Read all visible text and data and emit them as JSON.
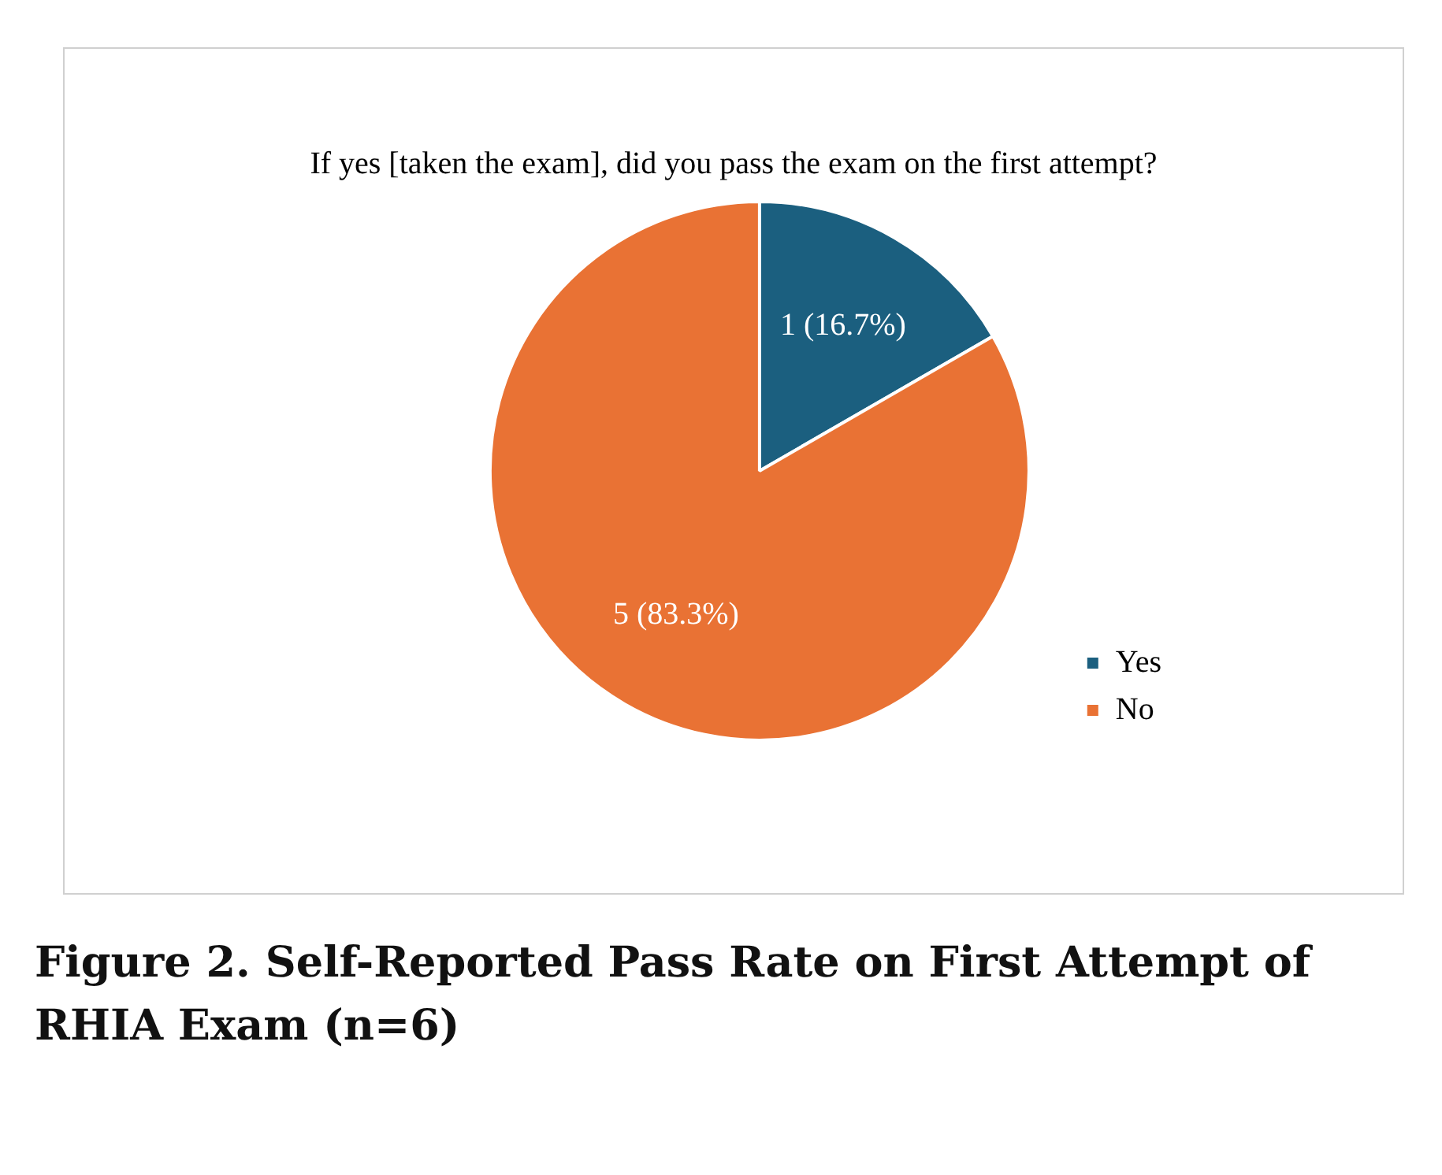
{
  "chart_data": {
    "type": "pie",
    "title": "If yes [taken the exam], did you pass the exam on the first attempt?",
    "categories": [
      "Yes",
      "No"
    ],
    "values": [
      1,
      5
    ],
    "colors": [
      "#1b5f7f",
      "#e97234"
    ],
    "value_labels": [
      "1 (16.7%)",
      "5 (83.3%)"
    ],
    "legend": "bottom right",
    "annotations": [
      "Figure 2.  Self-Reported Pass Rate on First Attempt of RHIA Exam (n=6)"
    ]
  }
}
